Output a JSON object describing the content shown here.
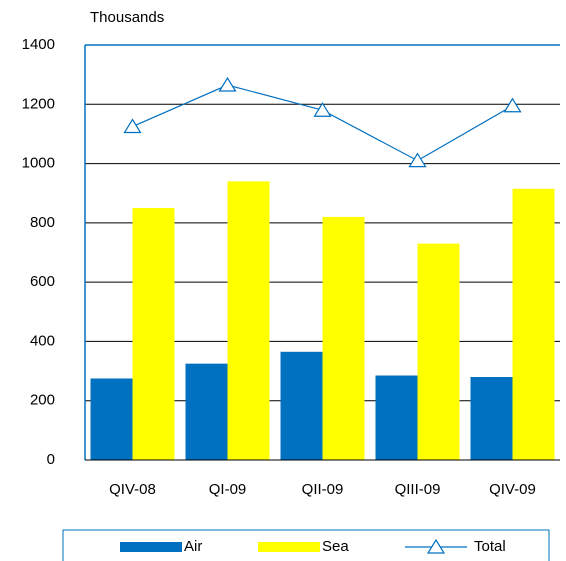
{
  "chart_data": {
    "type": "bar_line",
    "y_label": "Thousands",
    "categories": [
      "QIV-08",
      "QI-09",
      "QII-09",
      "QIII-09",
      "QIV-09"
    ],
    "series": [
      {
        "name": "Air",
        "type": "bar",
        "color": "#0070c0",
        "values": [
          275,
          325,
          365,
          285,
          280
        ]
      },
      {
        "name": "Sea",
        "type": "bar",
        "color": "#ffff00",
        "values": [
          850,
          940,
          820,
          730,
          915
        ]
      },
      {
        "name": "Total",
        "type": "line",
        "color": "#0070c0",
        "marker": "triangle",
        "values": [
          1125,
          1265,
          1180,
          1010,
          1195
        ]
      }
    ],
    "ylim": [
      0,
      1400
    ],
    "yticks": [
      0,
      200,
      400,
      600,
      800,
      1000,
      1200,
      1400
    ],
    "grid": true,
    "legend": "bottom"
  }
}
